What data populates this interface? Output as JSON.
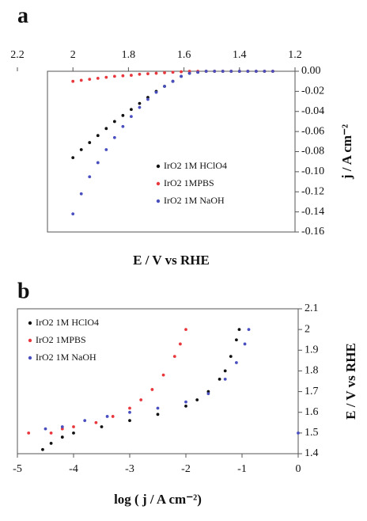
{
  "chart_data": [
    {
      "type": "scatter",
      "panel_label": "a",
      "x_label": "E / V vs RHE",
      "y_label": "j / A cm⁻²",
      "x_axis_position": "top",
      "y_axis_position": "right",
      "legend": "center right",
      "xlim": [
        2.2,
        1.2
      ],
      "xticks": [
        2.2,
        2,
        1.8,
        1.6,
        1.4,
        1.2
      ],
      "ylim": [
        -0.16,
        0
      ],
      "yticks": [
        {
          "value": 0,
          "label": "0.00"
        },
        {
          "value": -0.02,
          "label": "-0.02"
        },
        {
          "value": -0.04,
          "label": "-0.04"
        },
        {
          "value": -0.06,
          "label": "-0.06"
        },
        {
          "value": -0.08,
          "label": "-0.08"
        },
        {
          "value": -0.1,
          "label": "-0.10"
        },
        {
          "value": -0.12,
          "label": "-0.12"
        },
        {
          "value": -0.14,
          "label": "-0.14"
        },
        {
          "value": -0.16,
          "label": "-0.16"
        }
      ],
      "series": [
        {
          "name": "IrO2 1M HClO4",
          "color": "#111111",
          "x": [
            2.0,
            1.97,
            1.94,
            1.91,
            1.88,
            1.85,
            1.82,
            1.79,
            1.76,
            1.73,
            1.7,
            1.67,
            1.64,
            1.61,
            1.58,
            1.55,
            1.52,
            1.49,
            1.46,
            1.43,
            1.4,
            1.37,
            1.34,
            1.31,
            1.28
          ],
          "values": [
            -0.086,
            -0.078,
            -0.071,
            -0.064,
            -0.057,
            -0.05,
            -0.044,
            -0.038,
            -0.032,
            -0.026,
            -0.02,
            -0.015,
            -0.01,
            -0.005,
            -0.002,
            -0.001,
            0,
            0,
            0,
            0,
            0,
            0,
            0,
            0,
            0
          ]
        },
        {
          "name": "IrO2 1MPBS",
          "color": "#e8383d",
          "x": [
            2.0,
            1.97,
            1.94,
            1.91,
            1.88,
            1.85,
            1.82,
            1.79,
            1.76,
            1.73,
            1.7,
            1.67,
            1.64,
            1.61,
            1.58,
            1.55,
            1.52,
            1.49,
            1.46,
            1.43,
            1.4,
            1.37,
            1.34,
            1.31,
            1.28
          ],
          "values": [
            -0.01,
            -0.009,
            -0.008,
            -0.007,
            -0.006,
            -0.005,
            -0.0045,
            -0.004,
            -0.003,
            -0.0025,
            -0.002,
            -0.0015,
            -0.001,
            -0.0005,
            0,
            0,
            0,
            0,
            0,
            0,
            0,
            0,
            0,
            0,
            0
          ]
        },
        {
          "name": "IrO2 1M NaOH",
          "color": "#4a4fc0",
          "x": [
            2.0,
            1.97,
            1.94,
            1.91,
            1.88,
            1.85,
            1.82,
            1.79,
            1.76,
            1.73,
            1.7,
            1.67,
            1.64,
            1.61,
            1.58,
            1.55,
            1.52,
            1.49,
            1.46,
            1.43,
            1.4,
            1.37,
            1.34,
            1.31,
            1.28
          ],
          "values": [
            -0.142,
            -0.122,
            -0.105,
            -0.091,
            -0.078,
            -0.066,
            -0.055,
            -0.045,
            -0.036,
            -0.028,
            -0.021,
            -0.015,
            -0.01,
            -0.005,
            -0.002,
            -0.001,
            0,
            0,
            0,
            0,
            0,
            0,
            0,
            0,
            0
          ]
        }
      ]
    },
    {
      "type": "scatter",
      "panel_label": "b",
      "x_label": "log ( j / A cm⁻²)",
      "y_label": "E / V vs RHE",
      "x_axis_position": "bottom",
      "y_axis_position": "right",
      "legend": "upper left",
      "xlim": [
        -5,
        0
      ],
      "xticks": [
        -5,
        -4,
        -3,
        -2,
        -1,
        0
      ],
      "ylim": [
        1.4,
        2.1
      ],
      "yticks": [
        1.4,
        1.5,
        1.6,
        1.7,
        1.8,
        1.9,
        2,
        2.1
      ],
      "series": [
        {
          "name": "IrO2 1M HClO4",
          "color": "#111111",
          "x": [
            -4.55,
            -4.4,
            -4.2,
            -4,
            -3.5,
            -3,
            -2.5,
            -2,
            -1.8,
            -1.6,
            -1.4,
            -1.3,
            -1.2,
            -1.1,
            -1.05
          ],
          "values": [
            1.42,
            1.45,
            1.48,
            1.5,
            1.53,
            1.56,
            1.59,
            1.63,
            1.66,
            1.7,
            1.76,
            1.8,
            1.87,
            1.95,
            2.0
          ]
        },
        {
          "name": "IrO2 1MPBS",
          "color": "#e8383d",
          "x": [
            -4.8,
            -4.4,
            -4.2,
            -4,
            -3.6,
            -3.3,
            -3,
            -2.8,
            -2.6,
            -2.4,
            -2.2,
            -2.1,
            -2.0
          ],
          "values": [
            1.5,
            1.5,
            1.52,
            1.53,
            1.55,
            1.58,
            1.62,
            1.66,
            1.71,
            1.78,
            1.87,
            1.93,
            2.0
          ]
        },
        {
          "name": "IrO2 1M NaOH",
          "color": "#4a4fc0",
          "x": [
            -4.5,
            -4.2,
            -3.8,
            -3.4,
            -3,
            -2.5,
            -2,
            -1.6,
            -1.3,
            -1.1,
            -0.95,
            -0.88,
            0
          ],
          "values": [
            1.52,
            1.53,
            1.56,
            1.58,
            1.6,
            1.62,
            1.65,
            1.69,
            1.76,
            1.84,
            1.93,
            2.0,
            1.5
          ]
        }
      ]
    }
  ]
}
